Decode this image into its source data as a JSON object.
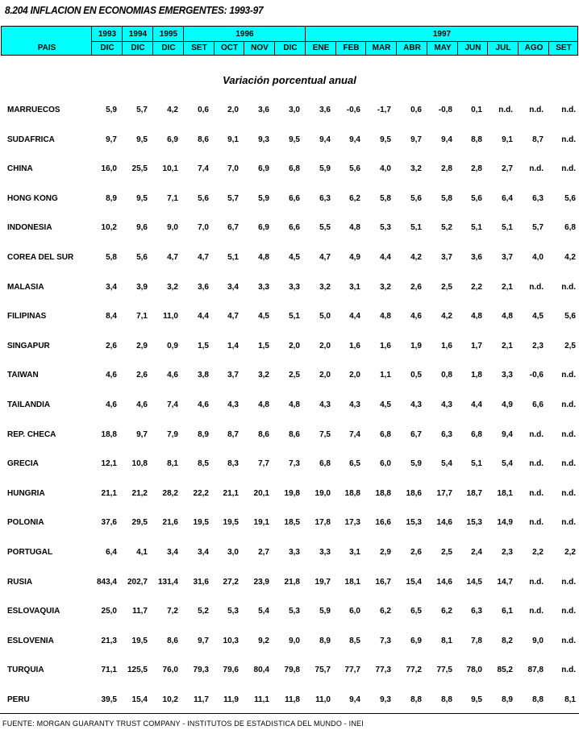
{
  "title": "8.204  INFLACION EN ECONOMIAS EMERGENTES: 1993-97",
  "header": {
    "pais": "PAIS",
    "years": [
      "1993",
      "1994",
      "1995",
      "1996",
      "1997"
    ],
    "months": [
      "DIC",
      "DIC",
      "DIC",
      "SET",
      "OCT",
      "NOV",
      "DIC",
      "ENE",
      "FEB",
      "MAR",
      "ABR",
      "MAY",
      "JUN",
      "JUL",
      "AGO",
      "SET"
    ],
    "color": "#00ffff"
  },
  "subtitle": "Variación porcentual anual",
  "rows": [
    {
      "country": "MARRUECOS",
      "values": [
        "5,9",
        "5,7",
        "4,2",
        "0,6",
        "2,0",
        "3,6",
        "3,0",
        "3,6",
        "-0,6",
        "-1,7",
        "0,6",
        "-0,8",
        "0,1",
        "n.d.",
        "n.d.",
        "n.d."
      ]
    },
    {
      "country": "SUDAFRICA",
      "values": [
        "9,7",
        "9,5",
        "6,9",
        "8,6",
        "9,1",
        "9,3",
        "9,5",
        "9,4",
        "9,4",
        "9,5",
        "9,7",
        "9,4",
        "8,8",
        "9,1",
        "8,7",
        "n.d."
      ]
    },
    {
      "country": "CHINA",
      "values": [
        "16,0",
        "25,5",
        "10,1",
        "7,4",
        "7,0",
        "6,9",
        "6,8",
        "5,9",
        "5,6",
        "4,0",
        "3,2",
        "2,8",
        "2,8",
        "2,7",
        "n.d.",
        "n.d."
      ]
    },
    {
      "country": "HONG KONG",
      "values": [
        "8,9",
        "9,5",
        "7,1",
        "5,6",
        "5,7",
        "5,9",
        "6,6",
        "6,3",
        "6,2",
        "5,8",
        "5,6",
        "5,8",
        "5,6",
        "6,4",
        "6,3",
        "5,6"
      ]
    },
    {
      "country": "INDONESIA",
      "values": [
        "10,2",
        "9,6",
        "9,0",
        "7,0",
        "6,7",
        "6,9",
        "6,6",
        "5,5",
        "4,8",
        "5,3",
        "5,1",
        "5,2",
        "5,1",
        "5,1",
        "5,7",
        "6,8"
      ]
    },
    {
      "country": "COREA DEL SUR",
      "values": [
        "5,8",
        "5,6",
        "4,7",
        "4,7",
        "5,1",
        "4,8",
        "4,5",
        "4,7",
        "4,9",
        "4,4",
        "4,2",
        "3,7",
        "3,6",
        "3,7",
        "4,0",
        "4,2"
      ]
    },
    {
      "country": "MALASIA",
      "values": [
        "3,4",
        "3,9",
        "3,2",
        "3,6",
        "3,4",
        "3,3",
        "3,3",
        "3,2",
        "3,1",
        "3,2",
        "2,6",
        "2,5",
        "2,2",
        "2,1",
        "n.d.",
        "n.d."
      ]
    },
    {
      "country": "FILIPINAS",
      "values": [
        "8,4",
        "7,1",
        "11,0",
        "4,4",
        "4,7",
        "4,5",
        "5,1",
        "5,0",
        "4,4",
        "4,8",
        "4,6",
        "4,2",
        "4,8",
        "4,8",
        "4,5",
        "5,6"
      ]
    },
    {
      "country": "SINGAPUR",
      "values": [
        "2,6",
        "2,9",
        "0,9",
        "1,5",
        "1,4",
        "1,5",
        "2,0",
        "2,0",
        "1,6",
        "1,6",
        "1,9",
        "1,6",
        "1,7",
        "2,1",
        "2,3",
        "2,5"
      ]
    },
    {
      "country": "TAIWAN",
      "values": [
        "4,6",
        "2,6",
        "4,6",
        "3,8",
        "3,7",
        "3,2",
        "2,5",
        "2,0",
        "2,0",
        "1,1",
        "0,5",
        "0,8",
        "1,8",
        "3,3",
        "-0,6",
        "n.d."
      ]
    },
    {
      "country": "TAILANDIA",
      "values": [
        "4,6",
        "4,6",
        "7,4",
        "4,6",
        "4,3",
        "4,8",
        "4,8",
        "4,3",
        "4,3",
        "4,5",
        "4,3",
        "4,3",
        "4,4",
        "4,9",
        "6,6",
        "n.d."
      ]
    },
    {
      "country": "REP. CHECA",
      "values": [
        "18,8",
        "9,7",
        "7,9",
        "8,9",
        "8,7",
        "8,6",
        "8,6",
        "7,5",
        "7,4",
        "6,8",
        "6,7",
        "6,3",
        "6,8",
        "9,4",
        "n.d.",
        "n.d."
      ]
    },
    {
      "country": "GRECIA",
      "values": [
        "12,1",
        "10,8",
        "8,1",
        "8,5",
        "8,3",
        "7,7",
        "7,3",
        "6,8",
        "6,5",
        "6,0",
        "5,9",
        "5,4",
        "5,1",
        "5,4",
        "n.d.",
        "n.d."
      ]
    },
    {
      "country": "HUNGRIA",
      "values": [
        "21,1",
        "21,2",
        "28,2",
        "22,2",
        "21,1",
        "20,1",
        "19,8",
        "19,0",
        "18,8",
        "18,8",
        "18,6",
        "17,7",
        "18,7",
        "18,1",
        "n.d.",
        "n.d."
      ]
    },
    {
      "country": "POLONIA",
      "values": [
        "37,6",
        "29,5",
        "21,6",
        "19,5",
        "19,5",
        "19,1",
        "18,5",
        "17,8",
        "17,3",
        "16,6",
        "15,3",
        "14,6",
        "15,3",
        "14,9",
        "n.d.",
        "n.d."
      ]
    },
    {
      "country": "PORTUGAL",
      "values": [
        "6,4",
        "4,1",
        "3,4",
        "3,4",
        "3,0",
        "2,7",
        "3,3",
        "3,3",
        "3,1",
        "2,9",
        "2,6",
        "2,5",
        "2,4",
        "2,3",
        "2,2",
        "2,2"
      ]
    },
    {
      "country": "RUSIA",
      "values": [
        "843,4",
        "202,7",
        "131,4",
        "31,6",
        "27,2",
        "23,9",
        "21,8",
        "19,7",
        "18,1",
        "16,7",
        "15,4",
        "14,6",
        "14,5",
        "14,7",
        "n.d.",
        "n.d."
      ]
    },
    {
      "country": "ESLOVAQUIA",
      "values": [
        "25,0",
        "11,7",
        "7,2",
        "5,2",
        "5,3",
        "5,4",
        "5,3",
        "5,9",
        "6,0",
        "6,2",
        "6,5",
        "6,2",
        "6,3",
        "6,1",
        "n.d.",
        "n.d."
      ]
    },
    {
      "country": "ESLOVENIA",
      "values": [
        "21,3",
        "19,5",
        "8,6",
        "9,7",
        "10,3",
        "9,2",
        "9,0",
        "8,9",
        "8,5",
        "7,3",
        "6,9",
        "8,1",
        "7,8",
        "8,2",
        "9,0",
        "n.d."
      ]
    },
    {
      "country": "TURQUIA",
      "values": [
        "71,1",
        "125,5",
        "76,0",
        "79,3",
        "79,6",
        "80,4",
        "79,8",
        "75,7",
        "77,7",
        "77,3",
        "77,2",
        "77,5",
        "78,0",
        "85,2",
        "87,8",
        "n.d."
      ]
    },
    {
      "country": "PERU",
      "values": [
        "39,5",
        "15,4",
        "10,2",
        "11,7",
        "11,9",
        "11,1",
        "11,8",
        "11,0",
        "9,4",
        "9,3",
        "8,8",
        "8,8",
        "9,5",
        "8,9",
        "8,8",
        "8,1"
      ]
    }
  ],
  "source": "FUENTE: MORGAN GUARANTY TRUST COMPANY - INSTITUTOS DE ESTADISTICA DEL MUNDO - INEI"
}
